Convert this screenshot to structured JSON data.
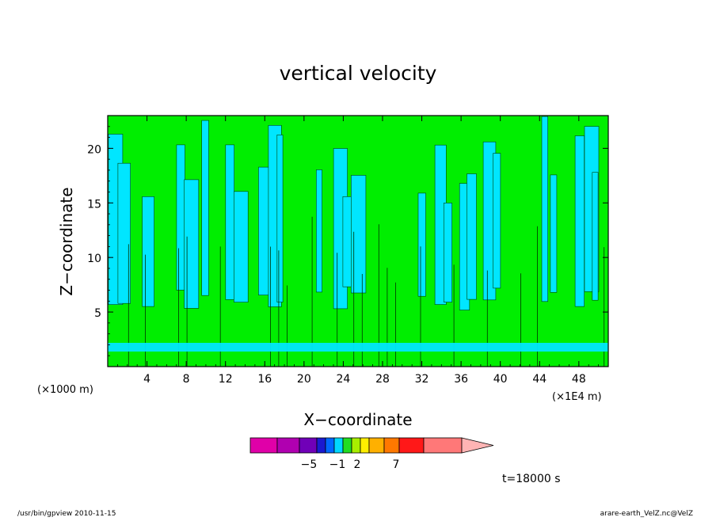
{
  "chart_data": {
    "type": "heatmap",
    "title": "vertical velocity",
    "xlabel": "X−coordinate",
    "ylabel": "Z−coordinate",
    "x_unit_left": "(×1000 m)",
    "x_unit_right": "(×1E4 m)",
    "x_ticks": [
      "4",
      "8",
      "12",
      "16",
      "20",
      "24",
      "28",
      "32",
      "36",
      "40",
      "44",
      "48"
    ],
    "x_tick_values": [
      4,
      8,
      12,
      16,
      20,
      24,
      28,
      32,
      36,
      40,
      44,
      48
    ],
    "y_ticks": [
      "5",
      "10",
      "15",
      "20"
    ],
    "y_tick_values": [
      5,
      10,
      15,
      20
    ],
    "xlim": [
      0,
      51
    ],
    "ylim": [
      0,
      23
    ],
    "colorbar": {
      "colors": [
        "#e000a8",
        "#b000b0",
        "#7000b8",
        "#1a1ad0",
        "#0068ff",
        "#00d8ff",
        "#22dd22",
        "#a8ee00",
        "#ffee00",
        "#ffb000",
        "#ff7800",
        "#ff1818",
        "#ff7878",
        "#ffb4b4"
      ],
      "labels": [
        "−5",
        "−1",
        "2",
        "7"
      ]
    },
    "time_label": "t=18000 s",
    "footer_left": "/usr/bin/gpview   2010-11-15",
    "footer_right": "arare-earth_VelZ.nc@VelZ",
    "band_colors": {
      "down": "#00e6ff",
      "up": "#00ee00",
      "strong_up": "#a8ee00"
    }
  }
}
